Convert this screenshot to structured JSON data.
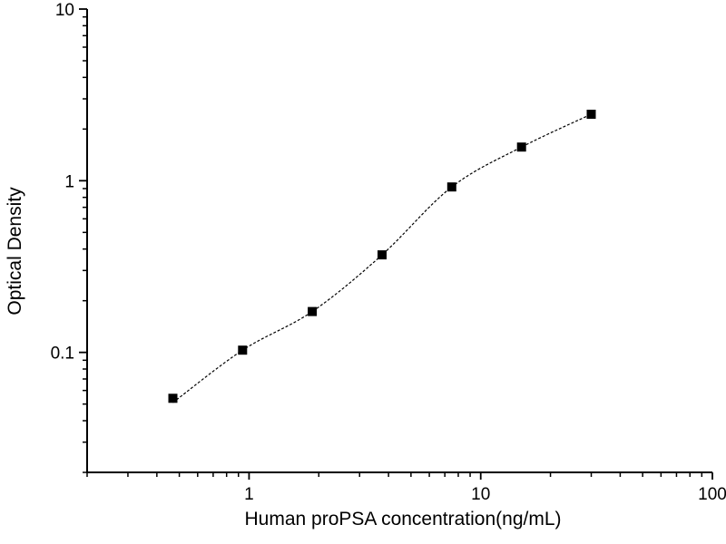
{
  "figure": {
    "background": "#ffffff",
    "foreground": "#000000"
  },
  "chart_data": {
    "type": "scatter",
    "title": "",
    "xlabel": "Human proPSA concentration(ng/mL)",
    "ylabel": "Optical Density",
    "x_scale": "log",
    "y_scale": "log",
    "xlim": [
      0.2,
      100
    ],
    "ylim": [
      0.02,
      10
    ],
    "x_major_ticks": [
      1,
      10,
      100
    ],
    "x_major_tick_labels": [
      "1",
      "10",
      "100"
    ],
    "x_minor_ticks": [
      0.2,
      0.3,
      0.4,
      0.5,
      0.6,
      0.7,
      0.8,
      0.9,
      2,
      3,
      4,
      5,
      6,
      7,
      8,
      9,
      20,
      30,
      40,
      50,
      60,
      70,
      80,
      90
    ],
    "y_major_ticks": [
      0.1,
      1,
      10
    ],
    "y_major_tick_labels": [
      "0.1",
      "1",
      "10"
    ],
    "y_minor_ticks": [
      0.02,
      0.03,
      0.04,
      0.05,
      0.06,
      0.07,
      0.08,
      0.09,
      0.2,
      0.3,
      0.4,
      0.5,
      0.6,
      0.7,
      0.8,
      0.9,
      2,
      3,
      4,
      5,
      6,
      7,
      8,
      9
    ],
    "grid": false,
    "legend": false,
    "series": [
      {
        "name": "standard-points",
        "kind": "scatter",
        "marker": "square",
        "marker_color": "#000000",
        "x": [
          0.469,
          0.938,
          1.875,
          3.75,
          7.5,
          15,
          30
        ],
        "y": [
          0.054,
          0.103,
          0.173,
          0.37,
          0.92,
          1.57,
          2.44
        ]
      },
      {
        "name": "fitted-curve",
        "kind": "smooth-line",
        "line_style": "dashed",
        "line_color": "#000000",
        "x": [
          0.469,
          0.938,
          1.875,
          3.75,
          7.5,
          15,
          30
        ],
        "y": [
          0.051,
          0.103,
          0.173,
          0.37,
          0.92,
          1.57,
          2.44
        ]
      }
    ]
  }
}
